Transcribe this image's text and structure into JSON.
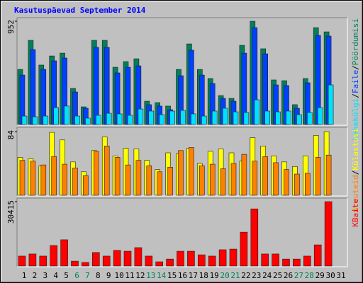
{
  "legend_separator": "/",
  "chart_data": [
    {
      "type": "bar",
      "title": "Kasutuspäevad September 2014",
      "series": [
        {
          "name": "Pöördumisi",
          "color": "#00805c",
          "values": [
            508,
            776,
            548,
            632,
            658,
            333,
            163,
            776,
            776,
            528,
            580,
            606,
            215,
            202,
            170,
            508,
            743,
            508,
            424,
            267,
            241,
            730,
            952,
            698,
            411,
            404,
            183,
            424,
            893,
            854,
            null
          ]
        },
        {
          "name": "Faile",
          "color": "#0040ff",
          "values": [
            456,
            691,
            508,
            587,
            613,
            300,
            150,
            711,
            711,
            476,
            528,
            541,
            183,
            170,
            137,
            450,
            685,
            456,
            378,
            241,
            215,
            658,
            893,
            652,
            365,
            359,
            150,
            385,
            821,
            815,
            null
          ]
        },
        {
          "name": "Lehekülgi",
          "color": "#00e0ff",
          "values": [
            78,
            72,
            78,
            156,
            170,
            78,
            59,
            85,
            104,
            98,
            85,
            143,
            124,
            91,
            124,
            130,
            98,
            78,
            124,
            150,
            117,
            111,
            228,
            124,
            117,
            124,
            91,
            111,
            156,
            365,
            null
          ]
        }
      ],
      "ylim": [
        0,
        952
      ],
      "yticks": [
        952
      ]
    },
    {
      "type": "bar",
      "series": [
        {
          "name": "Külastusi",
          "color": "#ffff00",
          "values": [
            50,
            48,
            39,
            83,
            73,
            44,
            31,
            59,
            77,
            52,
            62,
            61,
            46,
            34,
            56,
            55,
            62,
            42,
            58,
            61,
            56,
            45,
            76,
            65,
            52,
            44,
            38,
            52,
            79,
            84,
            null
          ]
        },
        {
          "name": "Arvuteid",
          "color": "#ff8000",
          "values": [
            46,
            45,
            40,
            51,
            41,
            36,
            26,
            58,
            65,
            50,
            40,
            46,
            39,
            31,
            37,
            59,
            63,
            39,
            41,
            35,
            42,
            54,
            45,
            51,
            43,
            34,
            28,
            29,
            50,
            53,
            null
          ]
        }
      ],
      "ylim": [
        0,
        84
      ],
      "yticks": [
        84
      ]
    },
    {
      "type": "bar",
      "categories": [
        "1",
        "2",
        "3",
        "4",
        "5",
        "6",
        "7",
        "8",
        "9",
        "10",
        "11",
        "12",
        "13",
        "14",
        "15",
        "16",
        "17",
        "18",
        "19",
        "20",
        "21",
        "22",
        "23",
        "24",
        "25",
        "26",
        "27",
        "28",
        "29",
        "30",
        "31"
      ],
      "category_label_colors": [
        "#000000",
        "#000000",
        "#000000",
        "#000000",
        "#000000",
        "#00805c",
        "#00805c",
        "#000000",
        "#000000",
        "#000000",
        "#000000",
        "#000000",
        "#00805c",
        "#00805c",
        "#000000",
        "#000000",
        "#000000",
        "#000000",
        "#000000",
        "#00805c",
        "#00805c",
        "#000000",
        "#000000",
        "#000000",
        "#000000",
        "#000000",
        "#00805c",
        "#00805c",
        "#000000",
        "#000000",
        "#000000"
      ],
      "series": [
        {
          "name": "KBaite",
          "color": "#ff0000",
          "values": [
            4700,
            5700,
            4700,
            9700,
            12400,
            2300,
            1700,
            6400,
            4700,
            7400,
            7000,
            8700,
            4700,
            2000,
            3300,
            7000,
            7000,
            5300,
            4700,
            7700,
            8000,
            16000,
            27000,
            5700,
            5700,
            3300,
            3300,
            4700,
            10000,
            30415,
            null
          ]
        }
      ],
      "ylim": [
        0,
        30415
      ],
      "yticks": [
        30415
      ]
    }
  ]
}
